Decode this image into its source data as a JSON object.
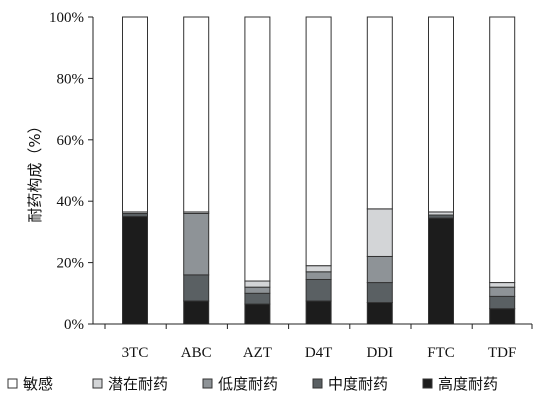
{
  "chart_data": {
    "type": "bar",
    "stacked": true,
    "categories": [
      "3TC",
      "ABC",
      "AZT",
      "D4T",
      "DDI",
      "FTC",
      "TDF"
    ],
    "ylabel": "耐药构成（%）",
    "ylim": [
      0,
      100
    ],
    "yticks": [
      "0%",
      "20%",
      "40%",
      "60%",
      "80%",
      "100%"
    ],
    "grid": false,
    "legend_position": "bottom",
    "series": [
      {
        "name": "高度耐药",
        "color": "#1c1c1c",
        "values": [
          35,
          7.5,
          6.5,
          7.5,
          7,
          34.5,
          5
        ]
      },
      {
        "name": "中度耐药",
        "color": "#5a6063",
        "values": [
          1,
          8.5,
          3.5,
          7,
          6.5,
          1,
          4
        ]
      },
      {
        "name": "低度耐药",
        "color": "#8e9397",
        "values": [
          0,
          20,
          2,
          2.5,
          8.5,
          0,
          3
        ]
      },
      {
        "name": "潜在耐药",
        "color": "#d3d5d7",
        "values": [
          0.5,
          0.5,
          2,
          2,
          15.5,
          1,
          1.5
        ]
      },
      {
        "name": "敏感",
        "color": "#ffffff",
        "values": [
          63.5,
          63.5,
          86,
          81,
          62.5,
          63.5,
          86.5
        ]
      }
    ],
    "legend_order": [
      "敏感",
      "潜在耐药",
      "低度耐药",
      "中度耐药",
      "高度耐药"
    ]
  }
}
